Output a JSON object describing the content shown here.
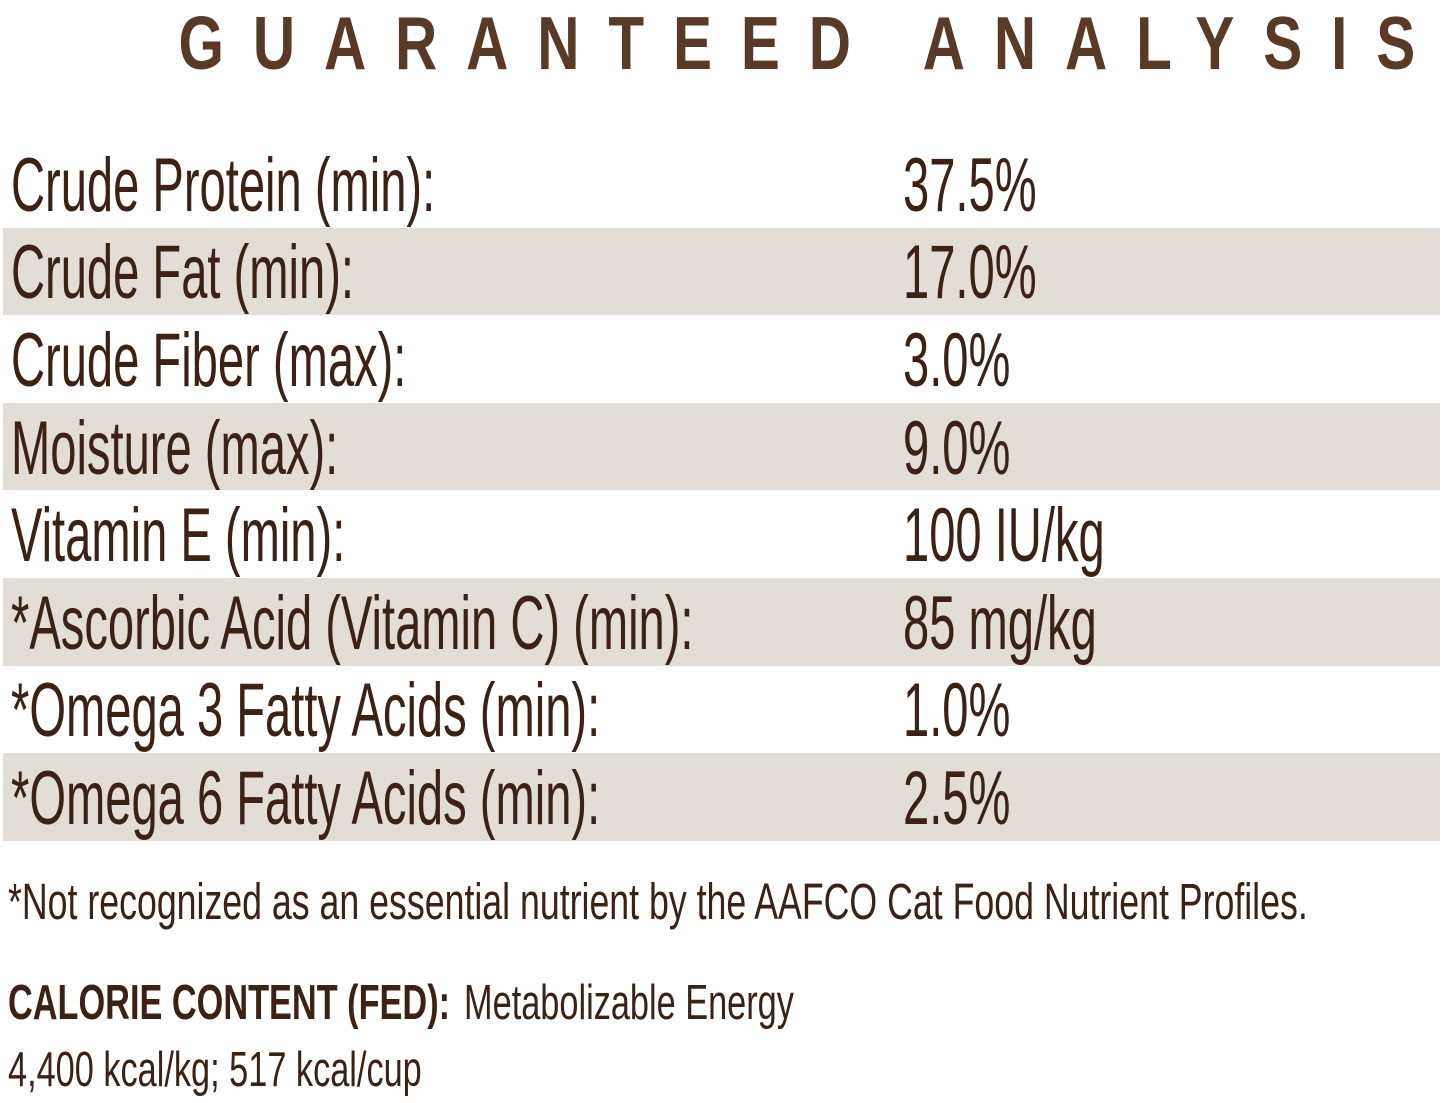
{
  "title": "GUARANTEED ANALYSIS",
  "colors": {
    "background": "#ffffff",
    "title_text": "#593a27",
    "body_text": "#3a2316",
    "row_shade": "#e2ddd7"
  },
  "table": {
    "rows": [
      {
        "label": "Crude Protein (min):",
        "value": "37.5%"
      },
      {
        "label": "Crude Fat (min):",
        "value": "17.0%"
      },
      {
        "label": "Crude Fiber (max):",
        "value": "3.0%"
      },
      {
        "label": "Moisture (max):",
        "value": "9.0%"
      },
      {
        "label": "Vitamin E (min):",
        "value": "100 IU/kg"
      },
      {
        "label": "*Ascorbic Acid (Vitamin C) (min):",
        "value": "85 mg/kg"
      },
      {
        "label": "*Omega 3 Fatty Acids (min):",
        "value": "1.0%"
      },
      {
        "label": "*Omega 6 Fatty Acids (min):",
        "value": "2.5%"
      }
    ]
  },
  "footnote": "*Not recognized as an essential nutrient by the AAFCO Cat Food Nutrient Profiles.",
  "calorie_content": {
    "heading": "CALORIE CONTENT (FED):",
    "description": "Metabolizable Energy",
    "values": "4,400 kcal/kg; 517 kcal/cup"
  }
}
